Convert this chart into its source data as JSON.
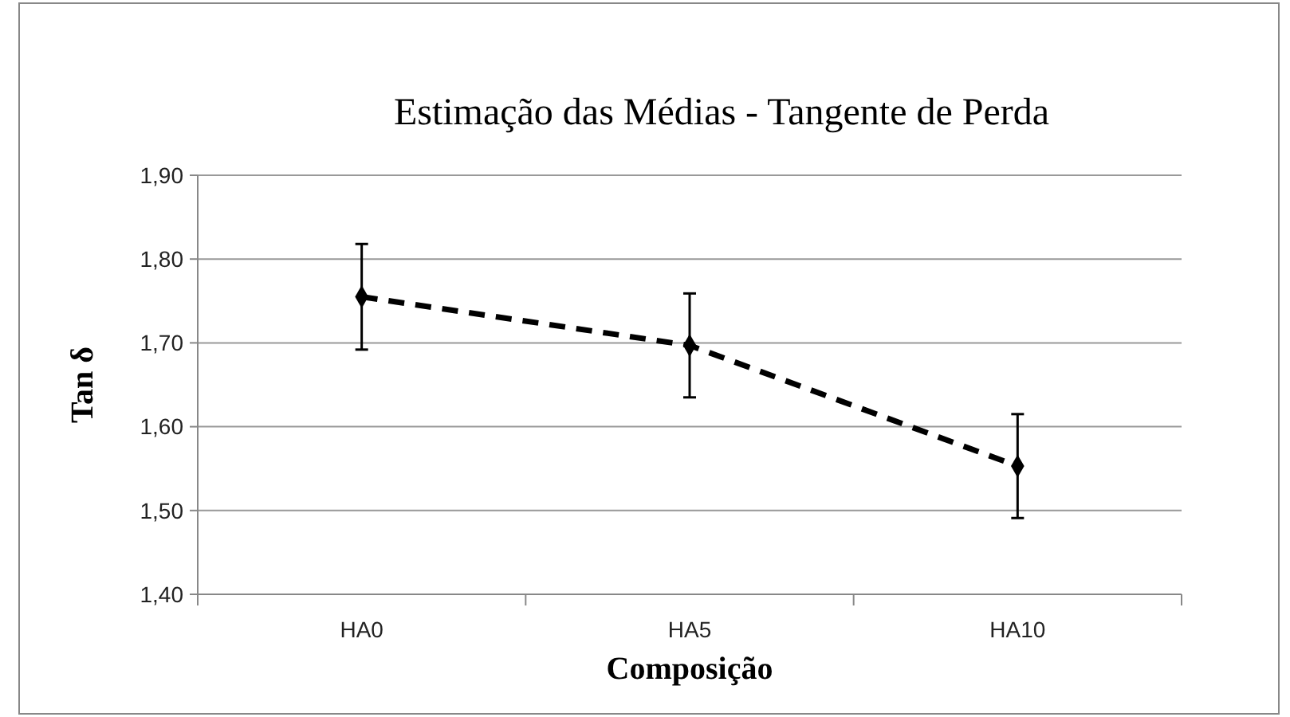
{
  "chart_data": {
    "type": "line",
    "title": "Estimação das Médias - Tangente de Perda",
    "xlabel": "Composição",
    "ylabel": "Tan δ",
    "categories": [
      "HA0",
      "HA5",
      "HA10"
    ],
    "series": [
      {
        "color": "#000000",
        "values": [
          1.755,
          1.697,
          1.553
        ],
        "errors": [
          0.063,
          0.062,
          0.062
        ]
      }
    ],
    "ylim": [
      1.4,
      1.9
    ],
    "yticks": [
      {
        "value": 1.4,
        "label": "1,40"
      },
      {
        "value": 1.5,
        "label": "1,50"
      },
      {
        "value": 1.6,
        "label": "1,60"
      },
      {
        "value": 1.7,
        "label": "1,70"
      },
      {
        "value": 1.8,
        "label": "1,80"
      },
      {
        "value": 1.9,
        "label": "1,90"
      }
    ],
    "grid": "y",
    "marker": "diamond",
    "line_style": "dashed"
  }
}
